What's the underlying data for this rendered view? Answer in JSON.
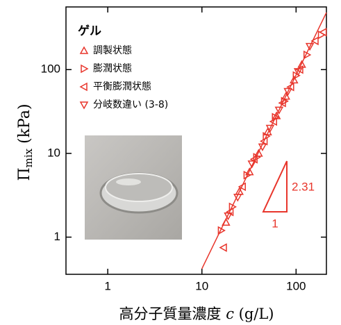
{
  "chart_data": {
    "type": "scatter",
    "x_label": "高分子質量濃度",
    "x_label_var": "c",
    "x_label_unit": "(g/L)",
    "y_label": "Π",
    "y_label_sub": "mix",
    "y_label_unit": "(kPa)",
    "legend_title": "ゲル",
    "xscale": "log",
    "yscale": "log",
    "xlim": [
      0.36,
      210
    ],
    "ylim": [
      0.36,
      560
    ],
    "xticks": [
      1,
      10,
      100
    ],
    "yticks": [
      1,
      10,
      100
    ],
    "series": [
      {
        "name": "調製状態",
        "color": "#e8352b",
        "marker": "triangle-up",
        "x": [
          18,
          25,
          32,
          40,
          50,
          62,
          78,
          95,
          115
        ],
        "values": [
          1.5,
          3.5,
          6,
          10,
          18,
          28,
          48,
          75,
          115
        ]
      },
      {
        "name": "膨潤状態",
        "color": "#e8352b",
        "marker": "triangle-right",
        "x": [
          16,
          21,
          30,
          38,
          48,
          60,
          75,
          100,
          130,
          185
        ],
        "values": [
          1.2,
          2.3,
          5.5,
          9,
          16,
          27,
          42,
          85,
          150,
          260
        ]
      },
      {
        "name": "平衡膨潤状態",
        "color": "#e8352b",
        "marker": "triangle-left",
        "x": [
          17,
          20,
          27,
          36,
          46,
          58,
          72,
          88,
          110,
          160,
          195
        ],
        "values": [
          0.75,
          2,
          4,
          8.5,
          14,
          24,
          40,
          62,
          100,
          220,
          280
        ]
      },
      {
        "name": "分岐数違い (3-8)",
        "color": "#e8352b",
        "marker": "triangle-down",
        "x": [
          19,
          24,
          34,
          44,
          53,
          66,
          82,
          105,
          140
        ],
        "values": [
          1.8,
          3,
          7.5,
          12,
          20,
          33,
          55,
          95,
          190
        ]
      }
    ],
    "fit_line": {
      "color": "#e8352b",
      "x": [
        10,
        210
      ],
      "y": [
        0.42,
        480
      ]
    },
    "slope_label": "2.31",
    "run_label": "1"
  }
}
